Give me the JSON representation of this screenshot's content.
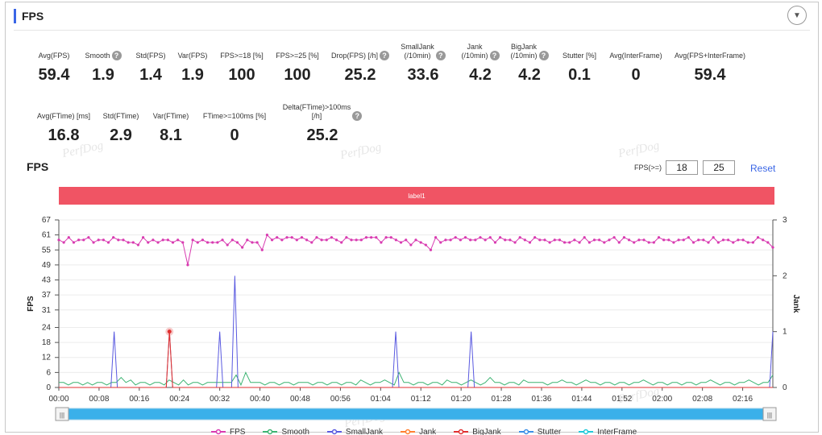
{
  "panel": {
    "title": "FPS",
    "collapse_icon": "chevron-down-icon"
  },
  "metrics_row1": [
    {
      "label": "Avg(FPS)",
      "value": "59.4",
      "help": false
    },
    {
      "label": "Smooth",
      "value": "1.9",
      "help": true
    },
    {
      "label": "Std(FPS)",
      "value": "1.4",
      "help": false
    },
    {
      "label": "Var(FPS)",
      "value": "1.9",
      "help": false
    },
    {
      "label": "FPS>=18 [%]",
      "value": "100",
      "help": false
    },
    {
      "label": "FPS>=25 [%]",
      "value": "100",
      "help": false
    },
    {
      "label": "Drop(FPS) [/h]",
      "value": "25.2",
      "help": true
    },
    {
      "label": "SmallJank\n(/10min)",
      "value": "33.6",
      "help": true
    },
    {
      "label": "Jank\n(/10min)",
      "value": "4.2",
      "help": true
    },
    {
      "label": "BigJank\n(/10min)",
      "value": "4.2",
      "help": true
    },
    {
      "label": "Stutter [%]",
      "value": "0.1",
      "help": false
    },
    {
      "label": "Avg(InterFrame)",
      "value": "0",
      "help": false
    },
    {
      "label": "Avg(FPS+InterFrame)",
      "value": "59.4",
      "help": false
    }
  ],
  "metrics_row2": [
    {
      "label": "Avg(FTime) [ms]",
      "value": "16.8",
      "help": false
    },
    {
      "label": "Std(FTime)",
      "value": "2.9",
      "help": false
    },
    {
      "label": "Var(FTime)",
      "value": "8.1",
      "help": false
    },
    {
      "label": "FTime>=100ms [%]",
      "value": "0",
      "help": false
    },
    {
      "label": "Delta(FTime)>100ms [/h]",
      "value": "25.2",
      "help": true
    }
  ],
  "chart_section": {
    "title": "FPS",
    "threshold_label": "FPS(>=)",
    "threshold_1": "18",
    "threshold_2": "25",
    "reset_label": "Reset",
    "label_bar": "label1",
    "watermark": "PerfDog"
  },
  "chart_data": {
    "type": "line",
    "y_left_label": "FPS",
    "y_left_ticks": [
      0,
      6,
      12,
      18,
      24,
      31,
      37,
      43,
      49,
      55,
      61,
      67
    ],
    "y_left_range": [
      0,
      67
    ],
    "y_right_label": "Jank",
    "y_right_ticks": [
      0,
      1,
      2,
      3
    ],
    "y_right_range": [
      0,
      3
    ],
    "x_ticks": [
      "00:00",
      "00:08",
      "00:16",
      "00:24",
      "00:32",
      "00:40",
      "00:48",
      "00:56",
      "01:04",
      "01:12",
      "01:20",
      "01:28",
      "01:36",
      "01:44",
      "01:52",
      "02:00",
      "02:08",
      "02:16"
    ],
    "x_range_seconds": [
      0,
      142
    ],
    "grid": "horizontal",
    "colors": {
      "FPS": "#d83ab0",
      "Smooth": "#3cb371",
      "SmallJank": "#5a5ae0",
      "Jank": "#ff8030",
      "BigJank": "#e03030",
      "Stutter": "#3a8ee6",
      "InterFrame": "#20c8d8"
    },
    "series": [
      {
        "name": "FPS",
        "axis": "left",
        "marker": true,
        "values": [
          59,
          58,
          60,
          58,
          59,
          59,
          60,
          58,
          59,
          59,
          58,
          60,
          59,
          59,
          58,
          58,
          57,
          60,
          58,
          59,
          58,
          59,
          59,
          58,
          59,
          58,
          49,
          59,
          58,
          59,
          58,
          58,
          58,
          59,
          57,
          59,
          58,
          56,
          59,
          58,
          58,
          55,
          61,
          59,
          60,
          59,
          60,
          60,
          59,
          60,
          59,
          58,
          60,
          59,
          59,
          60,
          59,
          58,
          60,
          59,
          59,
          59,
          60,
          60,
          60,
          58,
          60,
          60,
          59,
          58,
          59,
          57,
          59,
          58,
          57,
          55,
          60,
          58,
          59,
          59,
          60,
          59,
          60,
          59,
          59,
          60,
          59,
          60,
          58,
          60,
          59,
          59,
          58,
          60,
          59,
          58,
          60,
          59,
          59,
          58,
          59,
          59,
          58,
          58,
          59,
          58,
          60,
          58,
          59,
          59,
          58,
          59,
          60,
          58,
          60,
          59,
          58,
          59,
          59,
          58,
          58,
          60,
          59,
          59,
          58,
          59,
          59,
          60,
          58,
          59,
          59,
          58,
          60,
          58,
          59,
          59,
          58,
          59,
          59,
          58,
          58,
          60,
          59,
          58,
          56
        ]
      },
      {
        "name": "Smooth",
        "axis": "left",
        "marker": false,
        "values": [
          2,
          2,
          1,
          2,
          2,
          1,
          2,
          1,
          2,
          2,
          1,
          2,
          2,
          4,
          2,
          3,
          1,
          2,
          2,
          1,
          2,
          2,
          1,
          3,
          2,
          1,
          3,
          1,
          2,
          2,
          1,
          2,
          2,
          2,
          2,
          2,
          2,
          5,
          1,
          6,
          2,
          2,
          2,
          1,
          2,
          2,
          1,
          2,
          2,
          1,
          2,
          2,
          2,
          1,
          2,
          2,
          1,
          2,
          2,
          1,
          2,
          2,
          1,
          3,
          2,
          1,
          2,
          2,
          3,
          2,
          1,
          6,
          2,
          2,
          1,
          2,
          2,
          1,
          2,
          2,
          1,
          3,
          2,
          2,
          1,
          2,
          3,
          2,
          1,
          2,
          4,
          2,
          2,
          1,
          2,
          2,
          1,
          3,
          2,
          2,
          2,
          2,
          1,
          2,
          2,
          3,
          2,
          2,
          1,
          2,
          3,
          2,
          2,
          1,
          2,
          2,
          1,
          2,
          2,
          1,
          2,
          2,
          3,
          2,
          1,
          2,
          2,
          1,
          2,
          2,
          1,
          2,
          2,
          1,
          2,
          2,
          3,
          2,
          1,
          2,
          2,
          1,
          2,
          2,
          3,
          2,
          1,
          2,
          2,
          5
        ]
      },
      {
        "name": "SmallJank",
        "axis": "right",
        "values": [
          {
            "t": 11,
            "v": 1
          },
          {
            "t": 22,
            "v": 1
          },
          {
            "t": 32,
            "v": 1
          },
          {
            "t": 35,
            "v": 2
          },
          {
            "t": 67,
            "v": 1
          },
          {
            "t": 82,
            "v": 1
          },
          {
            "t": 142,
            "v": 1
          }
        ]
      },
      {
        "name": "Jank",
        "axis": "right",
        "values": [
          {
            "t": 22,
            "v": 1
          }
        ]
      },
      {
        "name": "BigJank",
        "axis": "right",
        "values": [
          {
            "t": 22,
            "v": 1
          }
        ]
      },
      {
        "name": "Stutter",
        "axis": "right",
        "values": []
      },
      {
        "name": "InterFrame",
        "axis": "right",
        "values": []
      }
    ]
  },
  "slider": {
    "left_handle": "|||",
    "right_handle": "|||"
  },
  "legend": [
    "FPS",
    "Smooth",
    "SmallJank",
    "Jank",
    "BigJank",
    "Stutter",
    "InterFrame"
  ]
}
